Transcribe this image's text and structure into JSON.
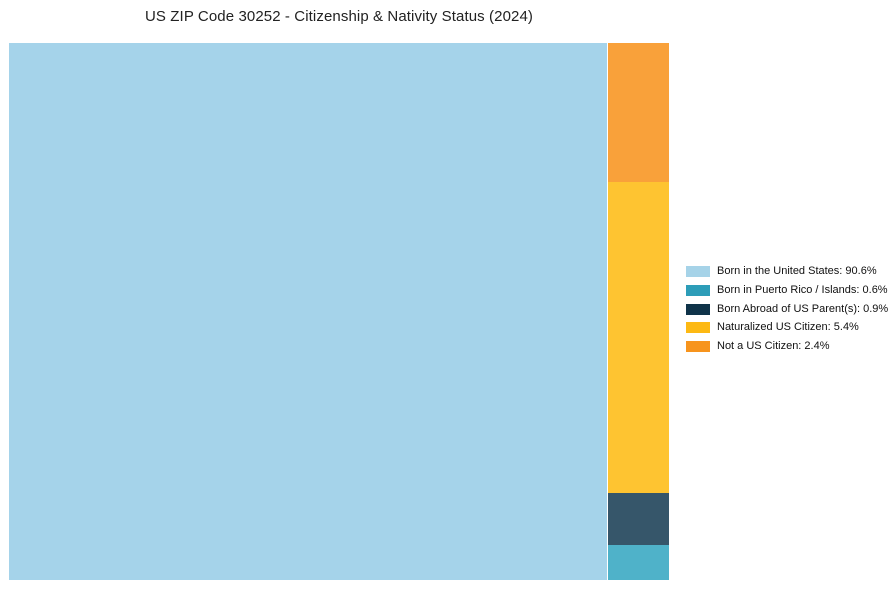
{
  "title": "US ZIP Code 30252 - Citizenship & Nativity Status (2024)",
  "chart_data": {
    "type": "treemap",
    "title": "US ZIP Code 30252 - Citizenship & Nativity Status (2024)",
    "unit": "%",
    "categories": [
      "Born in the United States",
      "Born in Puerto Rico / Islands",
      "Born Abroad of US Parent(s)",
      "Naturalized US Citizen",
      "Not a US Citizen"
    ],
    "values": [
      90.6,
      0.6,
      0.9,
      5.4,
      2.4
    ],
    "cell_colors": [
      "#a5d3ea",
      "#4fb2c9",
      "#36566a",
      "#fec431",
      "#f9a13a"
    ],
    "legend_position": "right",
    "layout_note": "First category fills left block at full height; remaining categories stacked in a right column, top to bottom: Not a US Citizen, Naturalized US Citizen, Born Abroad of US Parent(s), Born in Puerto Rico / Islands"
  },
  "legend": {
    "items": [
      {
        "label": "Born in the United States: 90.6%",
        "swatch_color": "#a6d3e8"
      },
      {
        "label": "Born in Puerto Rico / Islands: 0.6%",
        "swatch_color": "#2d9db8"
      },
      {
        "label": "Born Abroad of US Parent(s): 0.9%",
        "swatch_color": "#0f3349"
      },
      {
        "label": "Naturalized US Citizen: 5.4%",
        "swatch_color": "#fdb913"
      },
      {
        "label": "Not a US Citizen: 2.4%",
        "swatch_color": "#f7941d"
      }
    ]
  },
  "colors": {
    "background": "#ffffff",
    "title_text": "#222222",
    "legend_text": "#111111"
  }
}
